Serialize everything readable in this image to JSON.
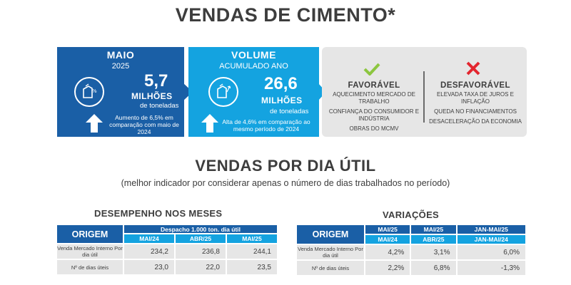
{
  "title": "VENDAS DE CIMENTO*",
  "cards": {
    "maio": {
      "head": "MAIO",
      "sub": "2025",
      "value": "5,7",
      "unit": "MILHÕES",
      "unit2": "de toneladas",
      "note": "Aumento de 6,5% em comparação com maio de 2024"
    },
    "volume": {
      "head": "VOLUME",
      "sub": "ACUMULADO ANO",
      "value": "26,6",
      "unit": "MILHÕES",
      "unit2": "de toneladas",
      "note": "Alta de 4,6% em comparação ao mesmo período de 2024"
    },
    "favoravel": {
      "head": "FAVORÁVEL",
      "items": [
        "AQUECIMENTO MERCADO DE TRABALHO",
        "CONFIANÇA DO CONSUMIDOR E INDÚSTRIA",
        "OBRAS DO MCMV"
      ]
    },
    "desfavoravel": {
      "head": "DESFAVORÁVEL",
      "items": [
        "ELEVADA TAXA DE JUROS E INFLAÇÃO",
        "QUEDA NO FINANCIAMENTOS",
        "DESACELERAÇÃO DA ECONOMIA"
      ]
    }
  },
  "section2": {
    "title": "VENDAS POR DIA ÚTIL",
    "subtitle": "(melhor indicador por considerar apenas o número de dias trabalhados no período)"
  },
  "desempenho": {
    "title": "DESEMPENHO NOS MESES",
    "origem": "ORIGEM",
    "group_header": "Despacho 1.000 ton. dia útil",
    "columns": [
      "MAI/24",
      "ABR/25",
      "MAI/25"
    ],
    "rows": [
      {
        "label": "Venda Mercado Interno Por dia útil",
        "values": [
          "234,2",
          "236,8",
          "244,1"
        ]
      },
      {
        "label": "Nº de dias úteis",
        "values": [
          "23,0",
          "22,0",
          "23,5"
        ]
      }
    ]
  },
  "variacoes": {
    "title": "VARIAÇÕES",
    "origem": "ORIGEM",
    "columns": [
      {
        "top": "MAI/25",
        "bottom": "MAI/24"
      },
      {
        "top": "MAI/25",
        "bottom": "ABR/25"
      },
      {
        "top": "JAN-MAI/25",
        "bottom": "JAN-MAI/24"
      }
    ],
    "rows": [
      {
        "label": "Venda Mercado Interno Por dia útil",
        "values": [
          "4,2%",
          "3,1%",
          "6,0%"
        ]
      },
      {
        "label": "Nº de dias úteis",
        "values": [
          "2,2%",
          "6,8%",
          "-1,3%"
        ]
      }
    ]
  },
  "colors": {
    "dark_blue": "#1a5fa6",
    "light_blue": "#14a3e0",
    "grey": "#e6e6e6",
    "check_green": "#8cc63f",
    "cross_red": "#e3262f"
  }
}
